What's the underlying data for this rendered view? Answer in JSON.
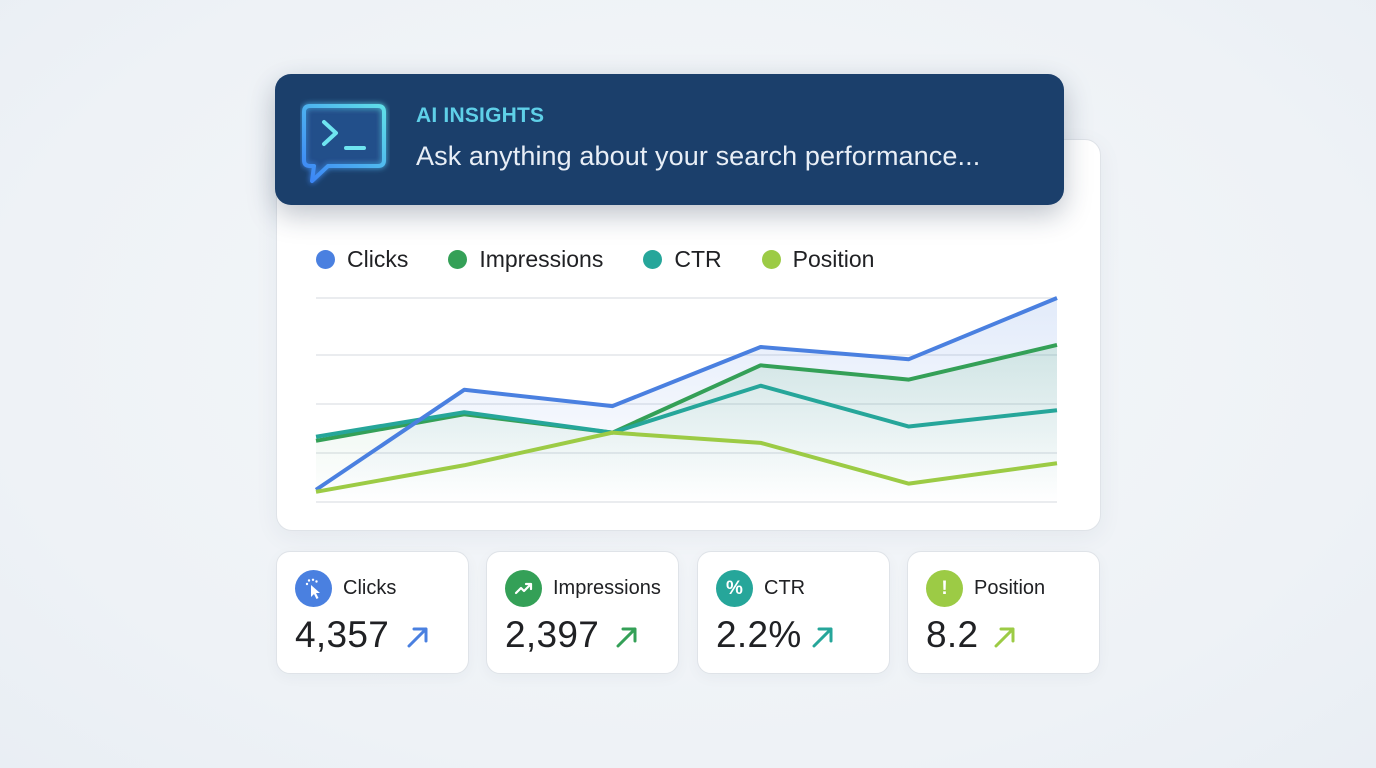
{
  "ai_insights": {
    "label": "AI INSIGHTS",
    "prompt": "Ask anything about your search performance...",
    "icon": "terminal-chat-icon"
  },
  "colors": {
    "clicks": "#4a80e0",
    "impressions": "#34a057",
    "ctr": "#26a69a",
    "position": "#9ccb45",
    "banner_bg": "#1b3f6b",
    "banner_label": "#5fd0e8"
  },
  "legend": [
    {
      "label": "Clicks",
      "color": "#4a80e0"
    },
    {
      "label": "Impressions",
      "color": "#34a057"
    },
    {
      "label": "CTR",
      "color": "#26a69a"
    },
    {
      "label": "Position",
      "color": "#9ccb45"
    }
  ],
  "chart_data": {
    "type": "line",
    "title": "",
    "xlabel": "",
    "ylabel": "",
    "x": [
      1,
      2,
      3,
      4,
      5,
      6
    ],
    "grid": true,
    "gridlines": 5,
    "legend_position": "top-left",
    "ylim": [
      0,
      100
    ],
    "series": [
      {
        "name": "Clicks",
        "color": "#4a80e0",
        "values": [
          6,
          55,
          47,
          76,
          70,
          100
        ],
        "area_fill": true
      },
      {
        "name": "Impressions",
        "color": "#34a057",
        "values": [
          30,
          43,
          34,
          67,
          60,
          77
        ],
        "area_fill": true
      },
      {
        "name": "CTR",
        "color": "#26a69a",
        "values": [
          32,
          44,
          34,
          57,
          37,
          45
        ]
      },
      {
        "name": "Position",
        "color": "#9ccb45",
        "values": [
          5,
          18,
          34,
          29,
          9,
          19
        ]
      }
    ]
  },
  "stats": [
    {
      "label": "Clicks",
      "value": "4,357",
      "trend": "up",
      "icon": "cursor-click-icon",
      "color": "#4a80e0"
    },
    {
      "label": "Impressions",
      "value": "2,397",
      "trend": "up",
      "icon": "trending-up-icon",
      "color": "#34a057"
    },
    {
      "label": "CTR",
      "value": "2.2%",
      "trend": "up",
      "icon": "percent-icon",
      "icon_glyph": "%",
      "color": "#26a69a"
    },
    {
      "label": "Position",
      "value": "8.2",
      "trend": "up",
      "icon": "exclamation-icon",
      "icon_glyph": "!",
      "color": "#9ccb45"
    }
  ]
}
